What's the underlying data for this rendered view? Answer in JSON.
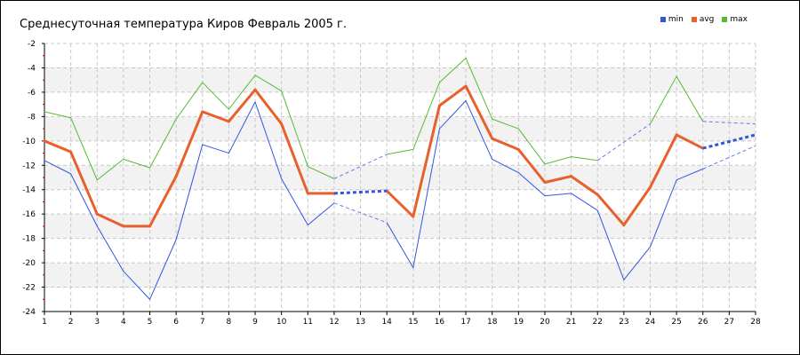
{
  "chart_data": {
    "type": "line",
    "title": "Среднесуточная температура Киров  Февраль 2005 г.",
    "xlabel": "",
    "ylabel": "",
    "x": [
      1,
      2,
      3,
      4,
      5,
      6,
      7,
      8,
      9,
      10,
      11,
      12,
      13,
      14,
      15,
      16,
      17,
      18,
      19,
      20,
      21,
      22,
      23,
      24,
      25,
      26,
      27,
      28
    ],
    "xlim": [
      1,
      28
    ],
    "ylim": [
      -24,
      -2
    ],
    "yticks": [
      -2,
      -4,
      -6,
      -8,
      -10,
      -12,
      -14,
      -16,
      -18,
      -20,
      -22,
      -24
    ],
    "grid": true,
    "legend_position": "top-right",
    "gap_days": [
      13,
      27
    ],
    "series": [
      {
        "name": "min",
        "color": "#3355dd",
        "values": [
          -11.6,
          -12.7,
          -17.0,
          -20.7,
          -23.0,
          -18.1,
          -10.3,
          -11.0,
          -6.8,
          -13.1,
          -16.9,
          -15.1,
          null,
          -16.7,
          -20.4,
          -9.0,
          -6.7,
          -11.5,
          -12.6,
          -14.5,
          -14.3,
          -15.7,
          -21.4,
          -18.7,
          -13.2,
          -12.3,
          null,
          -10.4
        ]
      },
      {
        "name": "avg",
        "color": "#e8602c",
        "values": [
          -10.0,
          -10.9,
          -16.0,
          -17.0,
          -17.0,
          -12.9,
          -7.6,
          -8.4,
          -5.8,
          -8.6,
          -14.3,
          -14.3,
          null,
          -14.1,
          -16.2,
          -7.1,
          -5.5,
          -9.8,
          -10.7,
          -13.4,
          -12.9,
          -14.4,
          -16.9,
          -13.8,
          -9.5,
          -10.6,
          null,
          -9.5
        ]
      },
      {
        "name": "max",
        "color": "#55bb33",
        "values": [
          -7.6,
          -8.1,
          -13.2,
          -11.5,
          -12.2,
          -8.2,
          -5.2,
          -7.4,
          -4.6,
          -5.9,
          -12.1,
          -13.1,
          null,
          -11.1,
          -10.7,
          -5.2,
          -3.2,
          -8.2,
          -9.0,
          -11.9,
          -11.3,
          -11.6,
          null,
          -8.6,
          -4.7,
          -8.4,
          null,
          -8.6
        ]
      }
    ]
  },
  "legend": {
    "items": [
      {
        "label": "min",
        "color": "#3355dd"
      },
      {
        "label": "avg",
        "color": "#e8602c"
      },
      {
        "label": "max",
        "color": "#55bb33"
      }
    ]
  }
}
